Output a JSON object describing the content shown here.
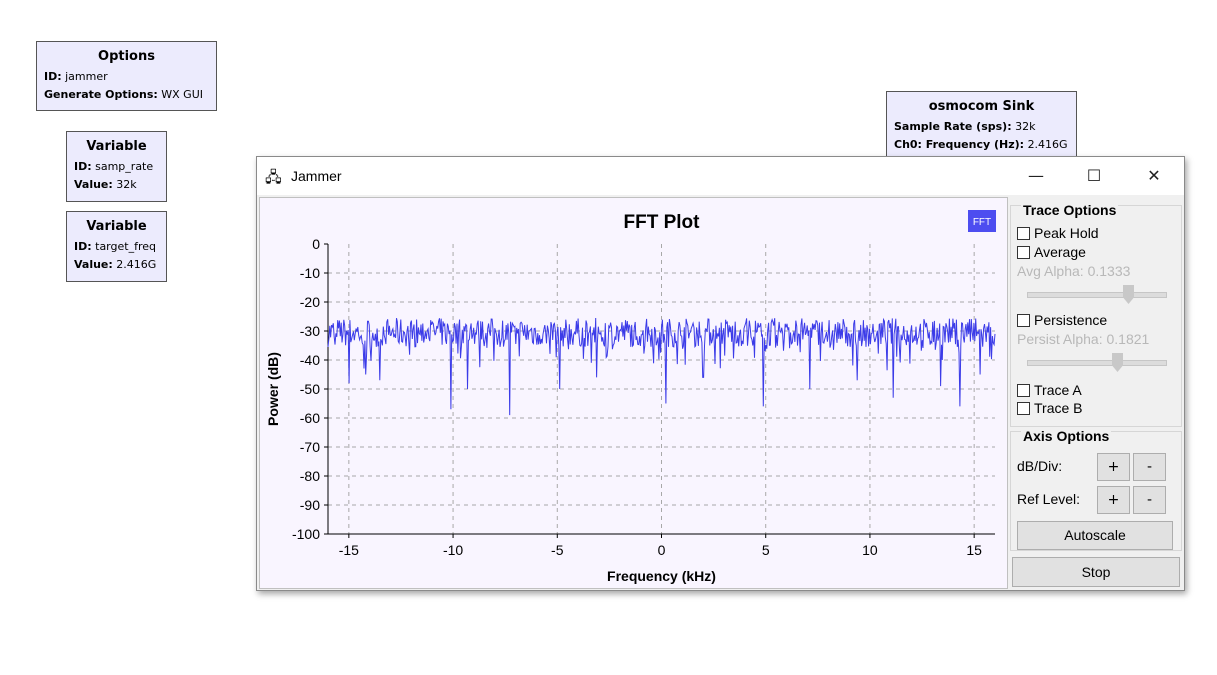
{
  "blocks": {
    "options": {
      "title": "Options",
      "id_label": "ID:",
      "id": "jammer",
      "gen_label": "Generate Options:",
      "gen": "WX GUI"
    },
    "var1": {
      "title": "Variable",
      "id_label": "ID:",
      "id": "samp_rate",
      "value_label": "Value:",
      "value": "32k"
    },
    "var2": {
      "title": "Variable",
      "id_label": "ID:",
      "id": "target_freq",
      "value_label": "Value:",
      "value": "2.416G"
    },
    "osmo": {
      "title": "osmocom Sink",
      "rate_label": "Sample Rate (sps):",
      "rate": "32k",
      "freq_label": "Ch0: Frequency (Hz):",
      "freq": "2.416G"
    }
  },
  "window": {
    "title": "Jammer",
    "minimize": "—",
    "maximize": "☐",
    "close": "✕"
  },
  "chart_data": {
    "type": "line",
    "title": "FFT Plot",
    "badge": "FFT",
    "xlabel": "Frequency (kHz)",
    "ylabel": "Power (dB)",
    "xlim": [
      -16,
      16
    ],
    "ylim": [
      -100,
      0
    ],
    "xticks": [
      -15,
      -10,
      -5,
      0,
      5,
      10,
      15
    ],
    "yticks": [
      0,
      -10,
      -20,
      -30,
      -40,
      -50,
      -60,
      -70,
      -80,
      -90,
      -100
    ],
    "grid": true,
    "series": [
      {
        "name": "FFT",
        "color": "#3b3be8",
        "baseline": -31,
        "spikes": [
          {
            "x": -15.0,
            "y": -48
          },
          {
            "x": -14.2,
            "y": -45
          },
          {
            "x": -13.5,
            "y": -47
          },
          {
            "x": -10.1,
            "y": -57
          },
          {
            "x": -9.3,
            "y": -50
          },
          {
            "x": -7.3,
            "y": -59
          },
          {
            "x": -4.9,
            "y": -50
          },
          {
            "x": -3.1,
            "y": -46
          },
          {
            "x": 0.2,
            "y": -55
          },
          {
            "x": 2.0,
            "y": -46
          },
          {
            "x": 4.9,
            "y": -56
          },
          {
            "x": 7.1,
            "y": -50
          },
          {
            "x": 9.4,
            "y": -47
          },
          {
            "x": 11.1,
            "y": -53
          },
          {
            "x": 13.4,
            "y": -49
          },
          {
            "x": 14.3,
            "y": -56
          },
          {
            "x": 15.3,
            "y": -45
          }
        ]
      }
    ]
  },
  "trace_options": {
    "title": "Trace Options",
    "peak_hold": "Peak Hold",
    "average": "Average",
    "avg_alpha": "Avg Alpha: 0.1333",
    "avg_alpha_value": 0.1333,
    "persistence": "Persistence",
    "persist_alpha": "Persist Alpha: 0.1821",
    "persist_alpha_value": 0.1821,
    "trace_a": "Trace A",
    "trace_b": "Trace B"
  },
  "axis_options": {
    "title": "Axis Options",
    "db_div": "dB/Div:",
    "ref_level": "Ref Level:",
    "plus": "+",
    "minus": "-",
    "autoscale": "Autoscale"
  },
  "stop_label": "Stop"
}
